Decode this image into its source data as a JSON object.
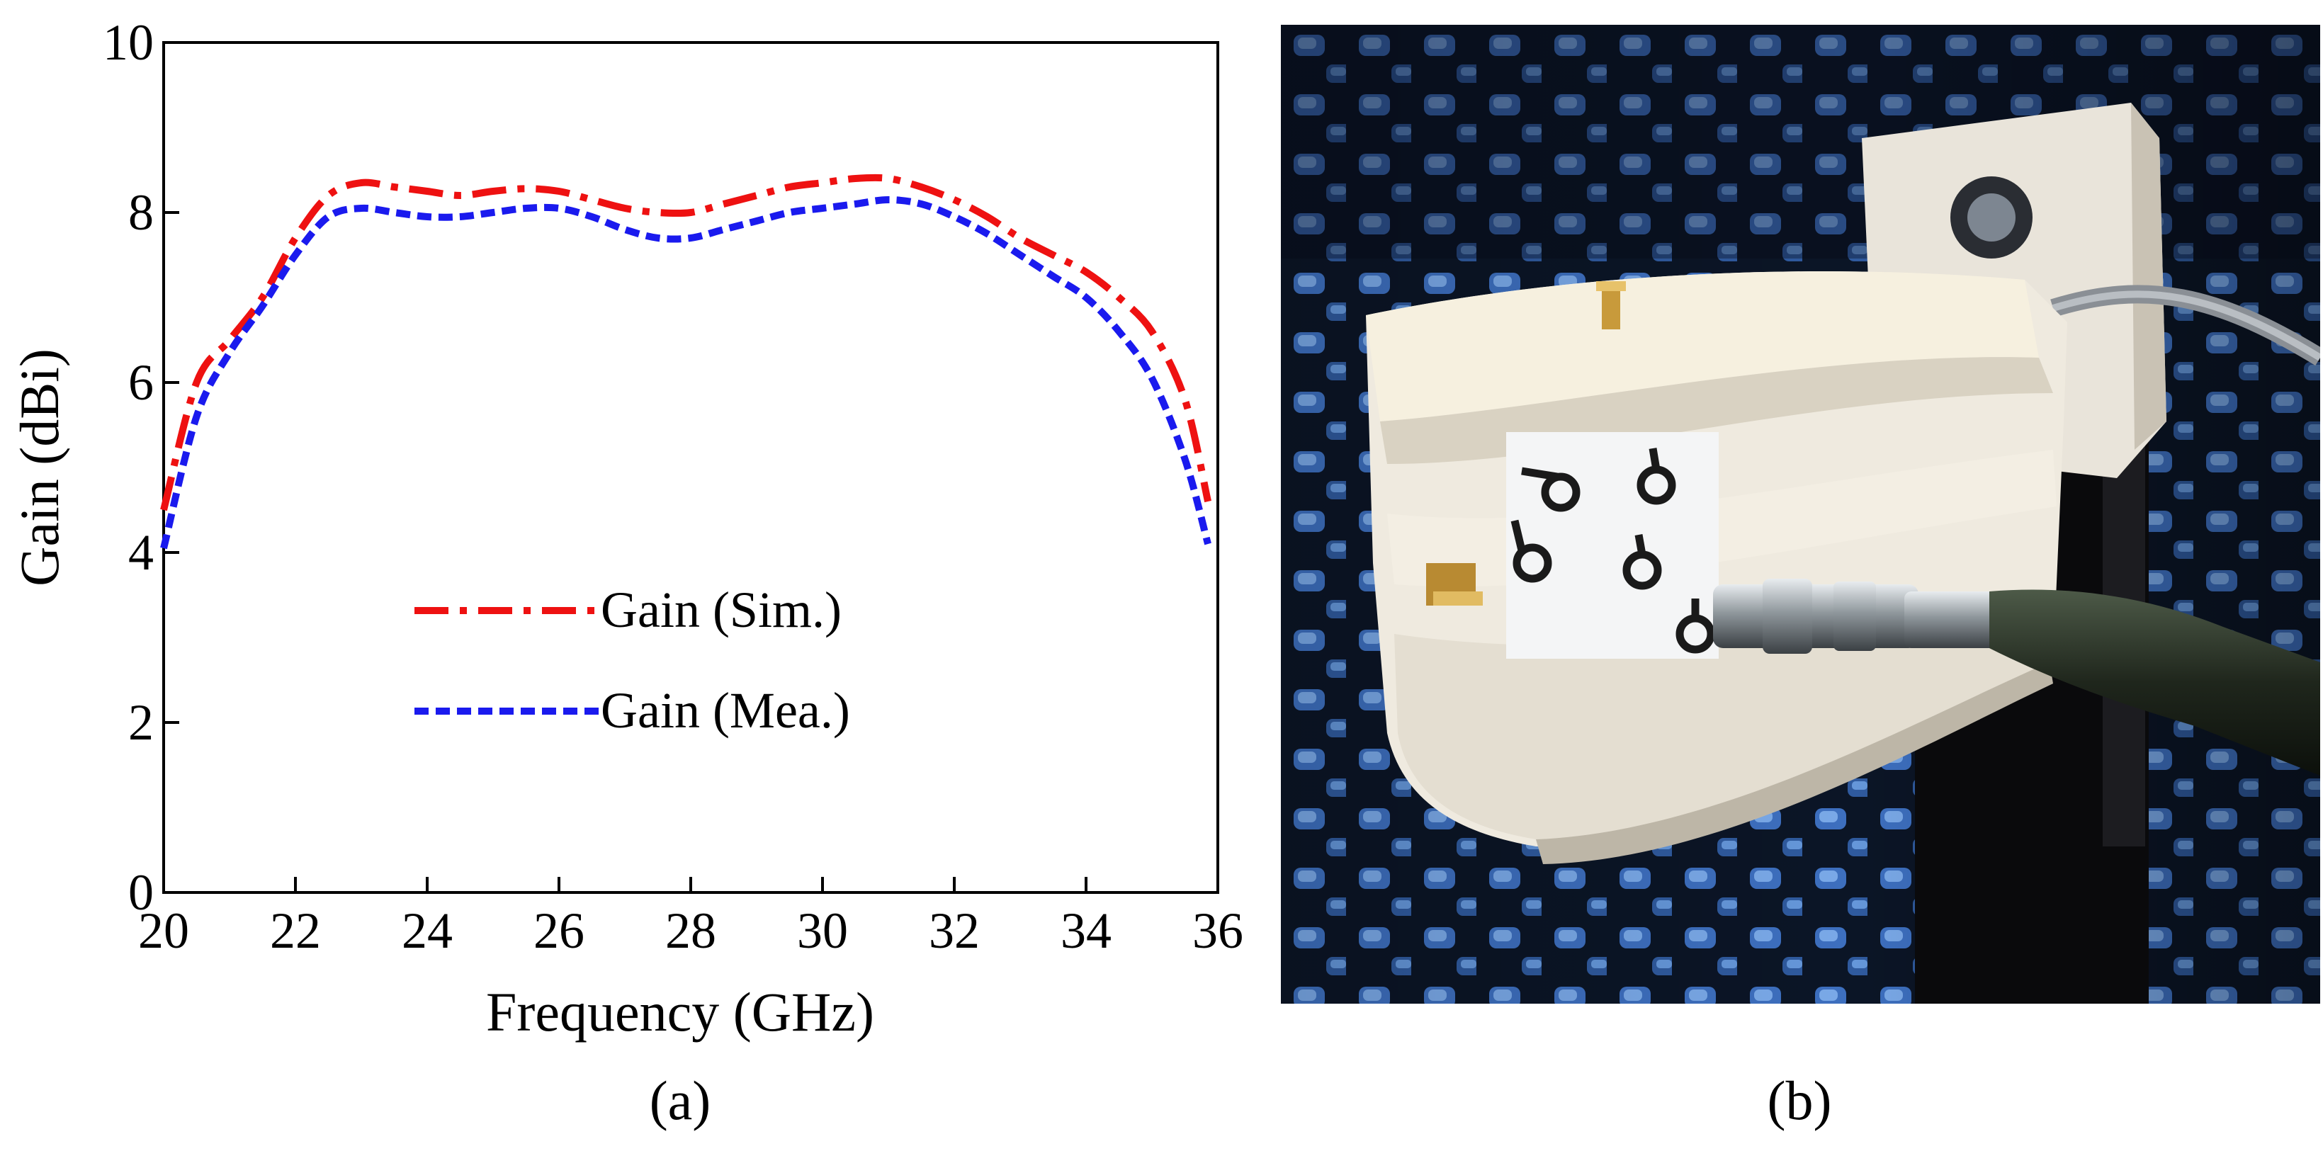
{
  "chart_data": {
    "type": "line",
    "title": "",
    "xlabel": "Frequency (GHz)",
    "ylabel": "Gain (dBi)",
    "xlim": [
      20,
      36
    ],
    "ylim": [
      0,
      10
    ],
    "xticks": [
      "20",
      "22",
      "24",
      "26",
      "28",
      "30",
      "32",
      "34",
      "36"
    ],
    "yticks": [
      "0",
      "2",
      "4",
      "6",
      "8",
      "10"
    ],
    "grid": false,
    "legend": "center-left",
    "x": [
      20.0,
      20.5,
      21.0,
      21.5,
      22.0,
      22.5,
      23.0,
      23.5,
      24.0,
      24.5,
      25.0,
      25.5,
      26.0,
      26.5,
      27.0,
      27.5,
      28.0,
      28.5,
      29.0,
      29.5,
      30.0,
      30.5,
      31.0,
      31.5,
      32.0,
      32.5,
      33.0,
      33.5,
      34.0,
      34.5,
      35.0,
      35.5,
      35.85
    ],
    "series": [
      {
        "name": "Gain (Sim.)",
        "color": "#ee1111",
        "style": "dash-dot",
        "values": [
          4.5,
          6.0,
          6.5,
          7.0,
          7.7,
          8.2,
          8.35,
          8.3,
          8.25,
          8.2,
          8.25,
          8.28,
          8.25,
          8.15,
          8.05,
          8.0,
          8.0,
          8.1,
          8.2,
          8.3,
          8.35,
          8.4,
          8.4,
          8.3,
          8.15,
          7.95,
          7.7,
          7.5,
          7.3,
          7.0,
          6.6,
          5.8,
          4.6
        ]
      },
      {
        "name": "Gain (Mea.)",
        "color": "#1a1aee",
        "style": "dash",
        "values": [
          4.05,
          5.6,
          6.35,
          6.9,
          7.5,
          7.95,
          8.05,
          8.0,
          7.95,
          7.95,
          8.0,
          8.05,
          8.05,
          7.95,
          7.8,
          7.7,
          7.7,
          7.8,
          7.9,
          8.0,
          8.05,
          8.1,
          8.15,
          8.1,
          7.95,
          7.75,
          7.5,
          7.25,
          7.0,
          6.6,
          6.05,
          5.1,
          4.1
        ]
      }
    ]
  },
  "captions": {
    "left": "(a)",
    "right": "(b)"
  },
  "photo": {
    "labels": [
      "o",
      "o",
      "o",
      "o",
      "o"
    ]
  }
}
